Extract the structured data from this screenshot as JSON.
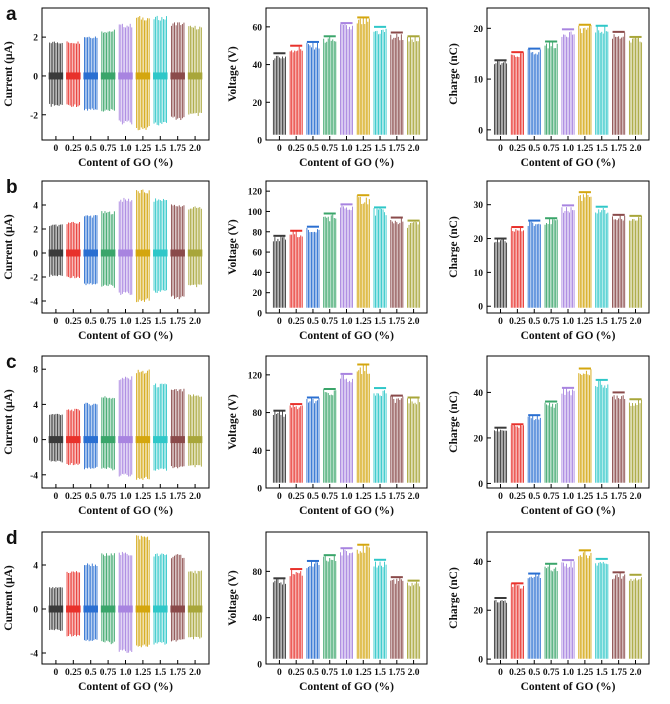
{
  "figure": {
    "x_categories": [
      "0",
      "0.25",
      "0.5",
      "0.75",
      "1.0",
      "1.25",
      "1.5",
      "1.75",
      "2.0"
    ],
    "series_colors": [
      "#3a3a3a",
      "#e8312b",
      "#2a6fd1",
      "#3aa56a",
      "#a884e0",
      "#d4a60e",
      "#2fc7c8",
      "#8a4a4a",
      "#a8a63a"
    ],
    "xlabel": "Content of GO (%)",
    "rows": [
      {
        "label": "a",
        "current": {
          "ylabel": "Current (μA)",
          "ticks": [
            -2,
            0,
            2
          ],
          "ylim": [
            -3.3,
            3.5
          ],
          "pos": [
            1.8,
            1.8,
            2.1,
            2.4,
            2.7,
            3.1,
            3.1,
            2.8,
            2.6
          ],
          "neg": [
            -1.6,
            -1.6,
            -1.8,
            -1.9,
            -2.5,
            -2.8,
            -2.6,
            -2.3,
            -2.1
          ]
        },
        "voltage": {
          "ylabel": "Voltage (V)",
          "ticks": [
            0,
            20,
            40,
            60
          ],
          "ylim": [
            0,
            70
          ],
          "values": [
            46,
            50,
            52,
            55,
            62,
            65,
            60,
            57,
            55
          ]
        },
        "charge": {
          "ylabel": "Charge (nC)",
          "ticks": [
            0,
            10,
            20
          ],
          "ylim": [
            -2,
            24
          ],
          "values": [
            13.7,
            15.3,
            16,
            17.4,
            19.8,
            20.7,
            20.5,
            19.3,
            18.3
          ]
        }
      },
      {
        "label": "b",
        "current": {
          "ylabel": "Current (μA)",
          "ticks": [
            -4,
            -2,
            0,
            2,
            4
          ],
          "ylim": [
            -5,
            6
          ],
          "pos": [
            2.4,
            2.6,
            3.2,
            3.5,
            4.6,
            5.3,
            4.6,
            4.1,
            3.9
          ],
          "neg": [
            -2.0,
            -2.1,
            -2.7,
            -2.9,
            -3.5,
            -4.1,
            -3.4,
            -3.9,
            -2.9
          ]
        },
        "voltage": {
          "ylabel": "Voltage (V)",
          "ticks": [
            0,
            20,
            40,
            60,
            80,
            100,
            120
          ],
          "ylim": [
            0,
            130
          ],
          "values": [
            76,
            81,
            85,
            98,
            107,
            116,
            104,
            94,
            91
          ]
        },
        "charge": {
          "ylabel": "Charge (nC)",
          "ticks": [
            0,
            10,
            20,
            30
          ],
          "ylim": [
            -2,
            37
          ],
          "values": [
            20,
            23.4,
            25.3,
            26,
            29.8,
            33.7,
            29.4,
            27,
            26.7
          ]
        }
      },
      {
        "label": "c",
        "current": {
          "ylabel": "Current (μA)",
          "ticks": [
            -4,
            0,
            4,
            8
          ],
          "ylim": [
            -5.5,
            9.5
          ],
          "pos": [
            3.0,
            3.5,
            4.2,
            5.0,
            7.2,
            8.0,
            6.4,
            5.8,
            5.2
          ],
          "neg": [
            -2.6,
            -2.9,
            -3.4,
            -3.5,
            -4.2,
            -4.6,
            -3.6,
            -3.3,
            -3.2
          ]
        },
        "voltage": {
          "ylabel": "Voltage (V)",
          "ticks": [
            0,
            40,
            80,
            120
          ],
          "ylim": [
            0,
            140
          ],
          "values": [
            82,
            89,
            96,
            105,
            121,
            131,
            106,
            98,
            96
          ]
        },
        "charge": {
          "ylabel": "Charge (nC)",
          "ticks": [
            0,
            20,
            40
          ],
          "ylim": [
            -2,
            56
          ],
          "values": [
            24.5,
            26,
            30,
            36,
            42,
            50.5,
            45.5,
            40,
            37
          ]
        }
      },
      {
        "label": "d",
        "current": {
          "ylabel": "Current (μA)",
          "ticks": [
            -4,
            0,
            4
          ],
          "ylim": [
            -5,
            7
          ],
          "pos": [
            2.0,
            3.5,
            4.2,
            5.1,
            5.2,
            6.8,
            5.1,
            5.0,
            3.5
          ],
          "neg": [
            -2.0,
            -2.5,
            -3.0,
            -3.2,
            -4.0,
            -3.5,
            -3.3,
            -3.0,
            -2.8
          ]
        },
        "voltage": {
          "ylabel": "Voltage (V)",
          "ticks": [
            0,
            40,
            80
          ],
          "ylim": [
            0,
            114
          ],
          "values": [
            74,
            82,
            89,
            94,
            100,
            103,
            90,
            75,
            72
          ]
        },
        "charge": {
          "ylabel": "Charge (nC)",
          "ticks": [
            0,
            20,
            40
          ],
          "ylim": [
            -2,
            52
          ],
          "values": [
            25,
            31,
            35,
            39,
            40.5,
            44.5,
            41,
            35.5,
            34.5
          ]
        }
      }
    ]
  },
  "chart_data": [
    {
      "type": "bar",
      "panel": "a-current",
      "title": "",
      "xlabel": "Content of GO (%)",
      "ylabel": "Current (μA)",
      "categories": [
        "0",
        "0.25",
        "0.5",
        "0.75",
        "1.0",
        "1.25",
        "1.5",
        "1.75",
        "2.0"
      ],
      "ylim": [
        -3.3,
        3.5
      ],
      "series": [
        {
          "name": "positive peak",
          "values": [
            1.8,
            1.8,
            2.1,
            2.4,
            2.7,
            3.1,
            3.1,
            2.8,
            2.6
          ]
        },
        {
          "name": "negative peak",
          "values": [
            -1.6,
            -1.6,
            -1.8,
            -1.9,
            -2.5,
            -2.8,
            -2.6,
            -2.3,
            -2.1
          ]
        }
      ]
    },
    {
      "type": "bar",
      "panel": "a-voltage",
      "title": "",
      "xlabel": "Content of GO (%)",
      "ylabel": "Voltage (V)",
      "categories": [
        "0",
        "0.25",
        "0.5",
        "0.75",
        "1.0",
        "1.25",
        "1.5",
        "1.75",
        "2.0"
      ],
      "ylim": [
        0,
        70
      ],
      "values": [
        46,
        50,
        52,
        55,
        62,
        65,
        60,
        57,
        55
      ]
    },
    {
      "type": "bar",
      "panel": "a-charge",
      "title": "",
      "xlabel": "Content of GO (%)",
      "ylabel": "Charge (nC)",
      "categories": [
        "0",
        "0.25",
        "0.5",
        "0.75",
        "1.0",
        "1.25",
        "1.5",
        "1.75",
        "2.0"
      ],
      "ylim": [
        -2,
        24
      ],
      "values": [
        13.7,
        15.3,
        16,
        17.4,
        19.8,
        20.7,
        20.5,
        19.3,
        18.3
      ]
    },
    {
      "type": "bar",
      "panel": "b-current",
      "title": "",
      "xlabel": "Content of GO (%)",
      "ylabel": "Current (μA)",
      "categories": [
        "0",
        "0.25",
        "0.5",
        "0.75",
        "1.0",
        "1.25",
        "1.5",
        "1.75",
        "2.0"
      ],
      "ylim": [
        -5,
        6
      ],
      "series": [
        {
          "name": "positive peak",
          "values": [
            2.4,
            2.6,
            3.2,
            3.5,
            4.6,
            5.3,
            4.6,
            4.1,
            3.9
          ]
        },
        {
          "name": "negative peak",
          "values": [
            -2.0,
            -2.1,
            -2.7,
            -2.9,
            -3.5,
            -4.1,
            -3.4,
            -3.9,
            -2.9
          ]
        }
      ]
    },
    {
      "type": "bar",
      "panel": "b-voltage",
      "title": "",
      "xlabel": "Content of GO (%)",
      "ylabel": "Voltage (V)",
      "categories": [
        "0",
        "0.25",
        "0.5",
        "0.75",
        "1.0",
        "1.25",
        "1.5",
        "1.75",
        "2.0"
      ],
      "ylim": [
        0,
        130
      ],
      "values": [
        76,
        81,
        85,
        98,
        107,
        116,
        104,
        94,
        91
      ]
    },
    {
      "type": "bar",
      "panel": "b-charge",
      "title": "",
      "xlabel": "Content of GO (%)",
      "ylabel": "Charge (nC)",
      "categories": [
        "0",
        "0.25",
        "0.5",
        "0.75",
        "1.0",
        "1.25",
        "1.5",
        "1.75",
        "2.0"
      ],
      "ylim": [
        -2,
        37
      ],
      "values": [
        20,
        23.4,
        25.3,
        26,
        29.8,
        33.7,
        29.4,
        27,
        26.7
      ]
    },
    {
      "type": "bar",
      "panel": "c-current",
      "title": "",
      "xlabel": "Content of GO (%)",
      "ylabel": "Current (μA)",
      "categories": [
        "0",
        "0.25",
        "0.5",
        "0.75",
        "1.0",
        "1.25",
        "1.5",
        "1.75",
        "2.0"
      ],
      "ylim": [
        -5.5,
        9.5
      ],
      "series": [
        {
          "name": "positive peak",
          "values": [
            3.0,
            3.5,
            4.2,
            5.0,
            7.2,
            8.0,
            6.4,
            5.8,
            5.2
          ]
        },
        {
          "name": "negative peak",
          "values": [
            -2.6,
            -2.9,
            -3.4,
            -3.5,
            -4.2,
            -4.6,
            -3.6,
            -3.3,
            -3.2
          ]
        }
      ]
    },
    {
      "type": "bar",
      "panel": "c-voltage",
      "title": "",
      "xlabel": "Content of GO (%)",
      "ylabel": "Voltage (V)",
      "categories": [
        "0",
        "0.25",
        "0.5",
        "0.75",
        "1.0",
        "1.25",
        "1.5",
        "1.75",
        "2.0"
      ],
      "ylim": [
        0,
        140
      ],
      "values": [
        82,
        89,
        96,
        105,
        121,
        131,
        106,
        98,
        96
      ]
    },
    {
      "type": "bar",
      "panel": "c-charge",
      "title": "",
      "xlabel": "Content of GO (%)",
      "ylabel": "Charge (nC)",
      "categories": [
        "0",
        "0.25",
        "0.5",
        "0.75",
        "1.0",
        "1.25",
        "1.5",
        "1.75",
        "2.0"
      ],
      "ylim": [
        -2,
        56
      ],
      "values": [
        24.5,
        26,
        30,
        36,
        42,
        50.5,
        45.5,
        40,
        37
      ]
    },
    {
      "type": "bar",
      "panel": "d-current",
      "title": "",
      "xlabel": "Content of GO (%)",
      "ylabel": "Current (μA)",
      "categories": [
        "0",
        "0.25",
        "0.5",
        "0.75",
        "1.0",
        "1.25",
        "1.5",
        "1.75",
        "2.0"
      ],
      "ylim": [
        -5,
        7
      ],
      "series": [
        {
          "name": "positive peak",
          "values": [
            2.0,
            3.5,
            4.2,
            5.1,
            5.2,
            6.8,
            5.1,
            5.0,
            3.5
          ]
        },
        {
          "name": "negative peak",
          "values": [
            -2.0,
            -2.5,
            -3.0,
            -3.2,
            -4.0,
            -3.5,
            -3.3,
            -3.0,
            -2.8
          ]
        }
      ]
    },
    {
      "type": "bar",
      "panel": "d-voltage",
      "title": "",
      "xlabel": "Content of GO (%)",
      "ylabel": "Voltage (V)",
      "categories": [
        "0",
        "0.25",
        "0.5",
        "0.75",
        "1.0",
        "1.25",
        "1.5",
        "1.75",
        "2.0"
      ],
      "ylim": [
        0,
        114
      ],
      "values": [
        74,
        82,
        89,
        94,
        100,
        103,
        90,
        75,
        72
      ]
    },
    {
      "type": "bar",
      "panel": "d-charge",
      "title": "",
      "xlabel": "Content of GO (%)",
      "ylabel": "Charge (nC)",
      "categories": [
        "0",
        "0.25",
        "0.5",
        "0.75",
        "1.0",
        "1.25",
        "1.5",
        "1.75",
        "2.0"
      ],
      "ylim": [
        -2,
        52
      ],
      "values": [
        25,
        31,
        35,
        39,
        40.5,
        44.5,
        41,
        35.5,
        34.5
      ]
    }
  ]
}
